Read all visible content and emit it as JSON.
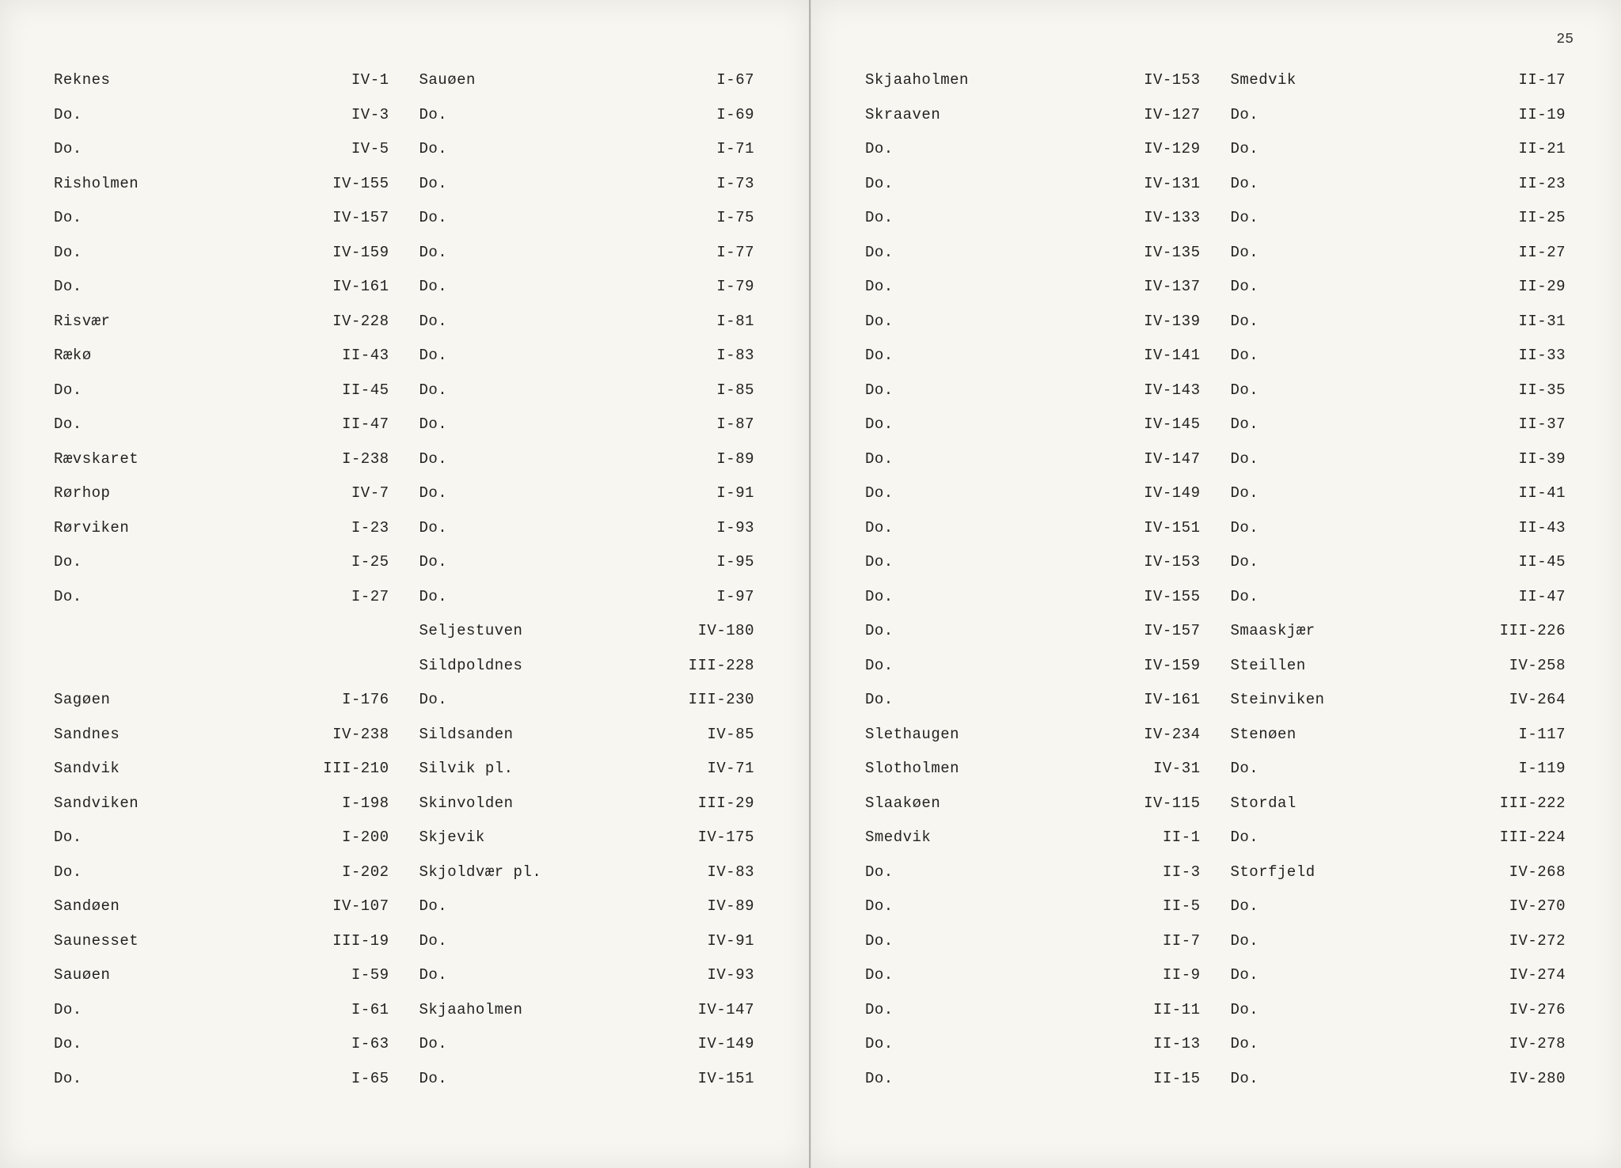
{
  "page_number": "25",
  "left_page": {
    "col1": [
      {
        "name": "Reknes",
        "ref": "IV-1"
      },
      {
        "name": "Do.",
        "ref": "IV-3"
      },
      {
        "name": "Do.",
        "ref": "IV-5"
      },
      {
        "name": "Risholmen",
        "ref": "IV-155"
      },
      {
        "name": "Do.",
        "ref": "IV-157"
      },
      {
        "name": "Do.",
        "ref": "IV-159"
      },
      {
        "name": "Do.",
        "ref": "IV-161"
      },
      {
        "name": "Risvær",
        "ref": "IV-228"
      },
      {
        "name": "Rækø",
        "ref": "II-43"
      },
      {
        "name": "Do.",
        "ref": "II-45"
      },
      {
        "name": "Do.",
        "ref": "II-47"
      },
      {
        "name": "Rævskaret",
        "ref": "I-238"
      },
      {
        "name": "Rørhop",
        "ref": "IV-7"
      },
      {
        "name": "Rørviken",
        "ref": "I-23"
      },
      {
        "name": "Do.",
        "ref": "I-25"
      },
      {
        "name": "Do.",
        "ref": "I-27"
      },
      {
        "name": "",
        "ref": ""
      },
      {
        "name": "",
        "ref": ""
      },
      {
        "name": "Sagøen",
        "ref": "I-176"
      },
      {
        "name": "Sandnes",
        "ref": "IV-238"
      },
      {
        "name": "Sandvik",
        "ref": "III-210"
      },
      {
        "name": "Sandviken",
        "ref": "I-198"
      },
      {
        "name": "Do.",
        "ref": "I-200"
      },
      {
        "name": "Do.",
        "ref": "I-202"
      },
      {
        "name": "Sandøen",
        "ref": "IV-107"
      },
      {
        "name": "Saunesset",
        "ref": "III-19"
      },
      {
        "name": "Sauøen",
        "ref": "I-59"
      },
      {
        "name": "Do.",
        "ref": "I-61"
      },
      {
        "name": "Do.",
        "ref": "I-63"
      },
      {
        "name": "Do.",
        "ref": "I-65"
      }
    ],
    "col2": [
      {
        "name": "Sauøen",
        "ref": "I-67"
      },
      {
        "name": "Do.",
        "ref": "I-69"
      },
      {
        "name": "Do.",
        "ref": "I-71"
      },
      {
        "name": "Do.",
        "ref": "I-73"
      },
      {
        "name": "Do.",
        "ref": "I-75"
      },
      {
        "name": "Do.",
        "ref": "I-77"
      },
      {
        "name": "Do.",
        "ref": "I-79"
      },
      {
        "name": "Do.",
        "ref": "I-81"
      },
      {
        "name": "Do.",
        "ref": "I-83"
      },
      {
        "name": "Do.",
        "ref": "I-85"
      },
      {
        "name": "Do.",
        "ref": "I-87"
      },
      {
        "name": "Do.",
        "ref": "I-89"
      },
      {
        "name": "Do.",
        "ref": "I-91"
      },
      {
        "name": "Do.",
        "ref": "I-93"
      },
      {
        "name": "Do.",
        "ref": "I-95"
      },
      {
        "name": "Do.",
        "ref": "I-97"
      },
      {
        "name": "Seljestuven",
        "ref": "IV-180"
      },
      {
        "name": "Sildpoldnes",
        "ref": "III-228"
      },
      {
        "name": "Do.",
        "ref": "III-230"
      },
      {
        "name": "Sildsanden",
        "ref": "IV-85"
      },
      {
        "name": "Silvik pl.",
        "ref": "IV-71"
      },
      {
        "name": "Skinvolden",
        "ref": "III-29"
      },
      {
        "name": "Skjevik",
        "ref": "IV-175"
      },
      {
        "name": "Skjoldvær pl.",
        "ref": "IV-83"
      },
      {
        "name": "Do.",
        "ref": "IV-89"
      },
      {
        "name": "Do.",
        "ref": "IV-91"
      },
      {
        "name": "Do.",
        "ref": "IV-93"
      },
      {
        "name": "Skjaaholmen",
        "ref": "IV-147"
      },
      {
        "name": "Do.",
        "ref": "IV-149"
      },
      {
        "name": "Do.",
        "ref": "IV-151"
      }
    ]
  },
  "right_page": {
    "col1": [
      {
        "name": "Skjaaholmen",
        "ref": "IV-153"
      },
      {
        "name": "Skraaven",
        "ref": "IV-127"
      },
      {
        "name": "Do.",
        "ref": "IV-129"
      },
      {
        "name": "Do.",
        "ref": "IV-131"
      },
      {
        "name": "Do.",
        "ref": "IV-133"
      },
      {
        "name": "Do.",
        "ref": "IV-135"
      },
      {
        "name": "Do.",
        "ref": "IV-137"
      },
      {
        "name": "Do.",
        "ref": "IV-139"
      },
      {
        "name": "Do.",
        "ref": "IV-141"
      },
      {
        "name": "Do.",
        "ref": "IV-143"
      },
      {
        "name": "Do.",
        "ref": "IV-145"
      },
      {
        "name": "Do.",
        "ref": "IV-147"
      },
      {
        "name": "Do.",
        "ref": "IV-149"
      },
      {
        "name": "Do.",
        "ref": "IV-151"
      },
      {
        "name": "Do.",
        "ref": "IV-153"
      },
      {
        "name": "Do.",
        "ref": "IV-155"
      },
      {
        "name": "Do.",
        "ref": "IV-157"
      },
      {
        "name": "Do.",
        "ref": "IV-159"
      },
      {
        "name": "Do.",
        "ref": "IV-161"
      },
      {
        "name": "Slethaugen",
        "ref": "IV-234"
      },
      {
        "name": "Slotholmen",
        "ref": "IV-31"
      },
      {
        "name": "Slaakøen",
        "ref": "IV-115"
      },
      {
        "name": "Smedvik",
        "ref": "II-1"
      },
      {
        "name": "Do.",
        "ref": "II-3"
      },
      {
        "name": "Do.",
        "ref": "II-5"
      },
      {
        "name": "Do.",
        "ref": "II-7"
      },
      {
        "name": "Do.",
        "ref": "II-9"
      },
      {
        "name": "Do.",
        "ref": "II-11"
      },
      {
        "name": "Do.",
        "ref": "II-13"
      },
      {
        "name": "Do.",
        "ref": "II-15"
      }
    ],
    "col2": [
      {
        "name": "Smedvik",
        "ref": "II-17"
      },
      {
        "name": "Do.",
        "ref": "II-19"
      },
      {
        "name": "Do.",
        "ref": "II-21"
      },
      {
        "name": "Do.",
        "ref": "II-23"
      },
      {
        "name": "Do.",
        "ref": "II-25"
      },
      {
        "name": "Do.",
        "ref": "II-27"
      },
      {
        "name": "Do.",
        "ref": "II-29"
      },
      {
        "name": "Do.",
        "ref": "II-31"
      },
      {
        "name": "Do.",
        "ref": "II-33"
      },
      {
        "name": "Do.",
        "ref": "II-35"
      },
      {
        "name": "Do.",
        "ref": "II-37"
      },
      {
        "name": "Do.",
        "ref": "II-39"
      },
      {
        "name": "Do.",
        "ref": "II-41"
      },
      {
        "name": "Do.",
        "ref": "II-43"
      },
      {
        "name": "Do.",
        "ref": "II-45"
      },
      {
        "name": "Do.",
        "ref": "II-47"
      },
      {
        "name": "Smaaskjær",
        "ref": "III-226"
      },
      {
        "name": "Steillen",
        "ref": "IV-258"
      },
      {
        "name": "Steinviken",
        "ref": "IV-264"
      },
      {
        "name": "Stenøen",
        "ref": "I-117"
      },
      {
        "name": "Do.",
        "ref": "I-119"
      },
      {
        "name": "Stordal",
        "ref": "III-222"
      },
      {
        "name": "Do.",
        "ref": "III-224"
      },
      {
        "name": "Storfjeld",
        "ref": "IV-268"
      },
      {
        "name": "Do.",
        "ref": "IV-270"
      },
      {
        "name": "Do.",
        "ref": "IV-272"
      },
      {
        "name": "Do.",
        "ref": "IV-274"
      },
      {
        "name": "Do.",
        "ref": "IV-276"
      },
      {
        "name": "Do.",
        "ref": "IV-278"
      },
      {
        "name": "Do.",
        "ref": "IV-280"
      }
    ]
  }
}
